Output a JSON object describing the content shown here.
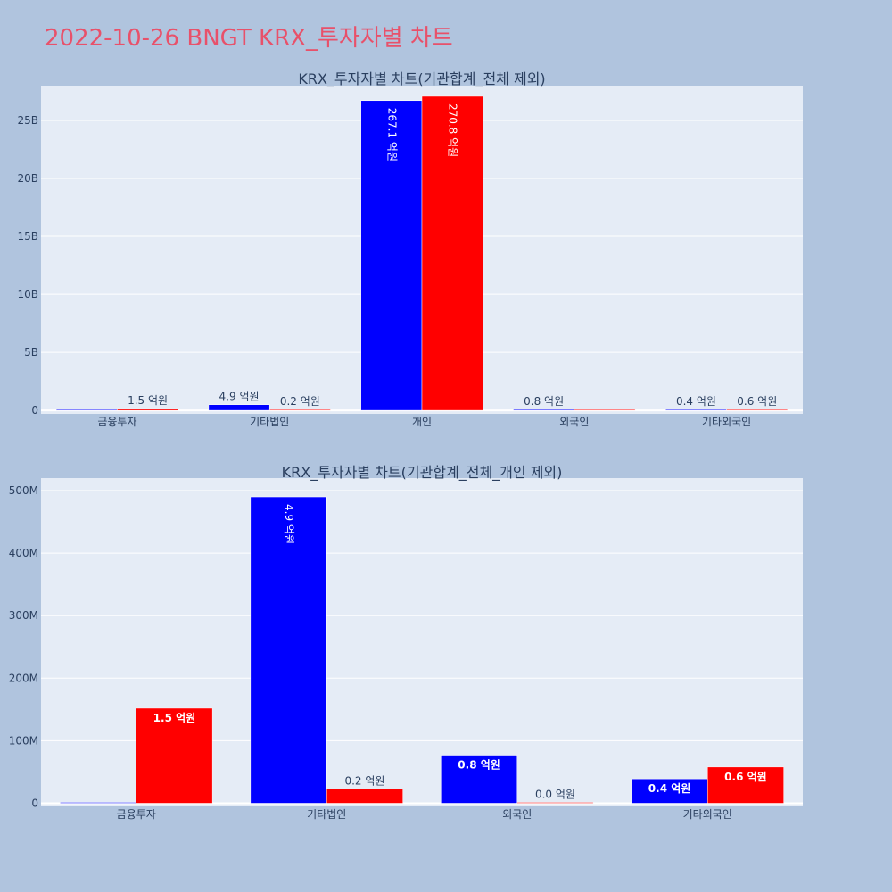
{
  "page": {
    "title": "2022-10-26 BNGT KRX_투자자별 차트"
  },
  "colors": {
    "background": "#b0c4de",
    "plot_bg": "#e5ecf6",
    "grid": "#ffffff",
    "title": "#e8516a",
    "text": "#2a3f5f",
    "series_a": "#0000ff",
    "series_b": "#ff0000"
  },
  "chart_data": [
    {
      "type": "bar",
      "title": "KRX_투자자별 차트(기관합계_전체 제외)",
      "categories": [
        "금융투자",
        "기타법인",
        "개인",
        "외국인",
        "기타외국인"
      ],
      "ylim": [
        -300000000,
        28000000000
      ],
      "yticks": [
        0,
        5000000000,
        10000000000,
        15000000000,
        20000000000,
        25000000000
      ],
      "ytick_labels": [
        "0",
        "5B",
        "10B",
        "15B",
        "20B",
        "25B"
      ],
      "grid": true,
      "series": [
        {
          "color": "#0000ff",
          "values": [
            0,
            490000000,
            26710000000,
            80000000,
            40000000
          ],
          "labels": [
            "",
            "4.9 억원",
            "267.1 억원",
            "0.8 억원",
            "0.4 억원"
          ]
        },
        {
          "color": "#ff0000",
          "values": [
            150000000,
            20000000,
            27080000000,
            0,
            60000000
          ],
          "labels": [
            "1.5 억원",
            "0.2 억원",
            "270.8 억원",
            "",
            "0.6 억원"
          ]
        }
      ]
    },
    {
      "type": "bar",
      "title": "KRX_투자자별 차트(기관합계_전체_개인 제외)",
      "categories": [
        "금융투자",
        "기타법인",
        "외국인",
        "기타외국인"
      ],
      "ylim": [
        -5000000,
        520000000
      ],
      "yticks": [
        0,
        100000000,
        200000000,
        300000000,
        400000000,
        500000000
      ],
      "ytick_labels": [
        "0",
        "100M",
        "200M",
        "300M",
        "400M",
        "500M"
      ],
      "grid": true,
      "series": [
        {
          "color": "#0000ff",
          "values": [
            0,
            490000000,
            77000000,
            39000000
          ],
          "labels": [
            "",
            "4.9 억원",
            "0.8 억원",
            "0.4 억원"
          ]
        },
        {
          "color": "#ff0000",
          "values": [
            152000000,
            23000000,
            1000000,
            58000000
          ],
          "labels": [
            "1.5 억원",
            "0.2 억원",
            "0.0 억원",
            "0.6 억원"
          ]
        }
      ]
    }
  ]
}
